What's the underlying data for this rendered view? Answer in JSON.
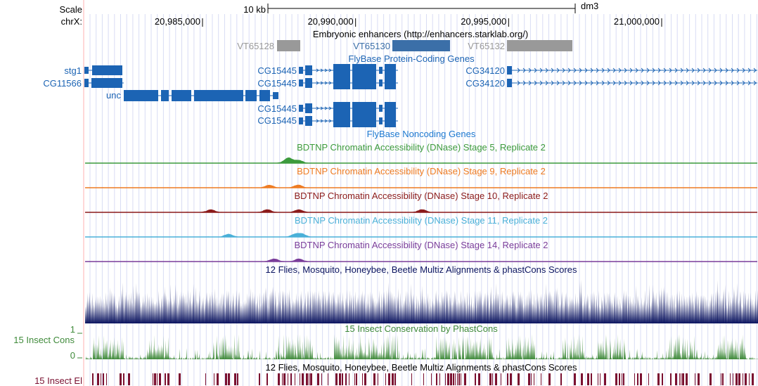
{
  "scale": {
    "label": "Scale",
    "bar_label": "10 kb",
    "assembly": "dm3"
  },
  "position": {
    "chrom_label": "chrX:",
    "ticks": [
      {
        "bp": 20985000,
        "label": "20,985,000"
      },
      {
        "bp": 20990000,
        "label": "20,990,000"
      },
      {
        "bp": 20995000,
        "label": "20,995,000"
      },
      {
        "bp": 21000000,
        "label": "21,000,000"
      }
    ]
  },
  "tracks": {
    "enhancers": {
      "title": "Embryonic enhancers (http://enhancers.starklab.org/)",
      "items": [
        {
          "name": "VT65128",
          "color": "#999999"
        },
        {
          "name": "VT65130",
          "color": "#3b6fa8"
        },
        {
          "name": "VT65132",
          "color": "#999999"
        }
      ]
    },
    "protein_coding": {
      "title": "FlyBase Protein-Coding Genes",
      "color": "#1c64b4",
      "genes": [
        "stg1",
        "CG11566",
        "unc",
        "CG15445",
        "CG15445",
        "CG15445",
        "CG15445",
        "CG34120",
        "CG34120"
      ]
    },
    "noncoding": {
      "title": "FlyBase Noncoding Genes",
      "color": "#1c78d0"
    },
    "dnase": [
      {
        "title": "BDTNP Chromatin Accessibility (DNase) Stage 5, Replicate 2",
        "color": "#3c9a3c"
      },
      {
        "title": "BDTNP Chromatin Accessibility (DNase) Stage 9, Replicate 2",
        "color": "#ee7b22"
      },
      {
        "title": "BDTNP Chromatin Accessibility (DNase) Stage 10, Replicate 2",
        "color": "#8b1a1a"
      },
      {
        "title": "BDTNP Chromatin Accessibility (DNase) Stage 11, Replicate 2",
        "color": "#4ab0d8"
      },
      {
        "title": "BDTNP Chromatin Accessibility (DNase) Stage 14, Replicate 2",
        "color": "#7a3d9a"
      }
    ],
    "multiz": {
      "title": "12 Flies, Mosquito, Honeybee, Beetle Multiz Alignments & phastCons Scores",
      "color": "#0c1560"
    },
    "insect_cons": {
      "title": "15 Insect Conservation by PhastCons",
      "side_label": "15 Insect Cons",
      "axis_max": "1",
      "axis_min": "0",
      "color": "#3f8a3a"
    },
    "insect_el": {
      "title": "12 Flies, Mosquito, Honeybee, Beetle Multiz Alignments & phastCons Scores",
      "side_label": "15 Insect El",
      "color": "#7a1030"
    }
  }
}
